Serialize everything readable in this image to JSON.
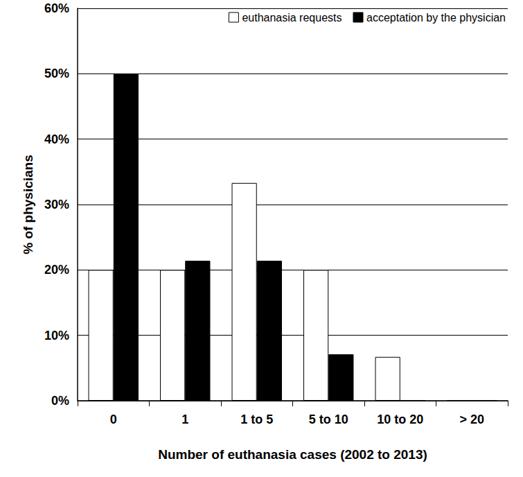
{
  "chart_data": {
    "type": "bar",
    "categories": [
      "0",
      "1",
      "1 to 5",
      "5 to 10",
      "10 to 20",
      "> 20"
    ],
    "series": [
      {
        "name": "euthanasia requests",
        "color": "#ffffff",
        "values": [
          20,
          20,
          33.3,
          20,
          6.7,
          0
        ]
      },
      {
        "name": "acceptation by the physician",
        "color": "#000000",
        "values": [
          50,
          21.4,
          21.4,
          7.1,
          0,
          0
        ]
      }
    ],
    "x_label": "Number of euthanasia cases (2002 to 2013)",
    "y_label": "% of physicians",
    "ylim": [
      0,
      60
    ],
    "yticks": [
      {
        "value": 0,
        "label": "0%"
      },
      {
        "value": 10,
        "label": "10%"
      },
      {
        "value": 20,
        "label": "20%"
      },
      {
        "value": 30,
        "label": "30%"
      },
      {
        "value": 40,
        "label": "40%"
      },
      {
        "value": 50,
        "label": "50%"
      },
      {
        "value": 60,
        "label": "60%"
      }
    ],
    "grid": true,
    "legend": "upper right"
  }
}
